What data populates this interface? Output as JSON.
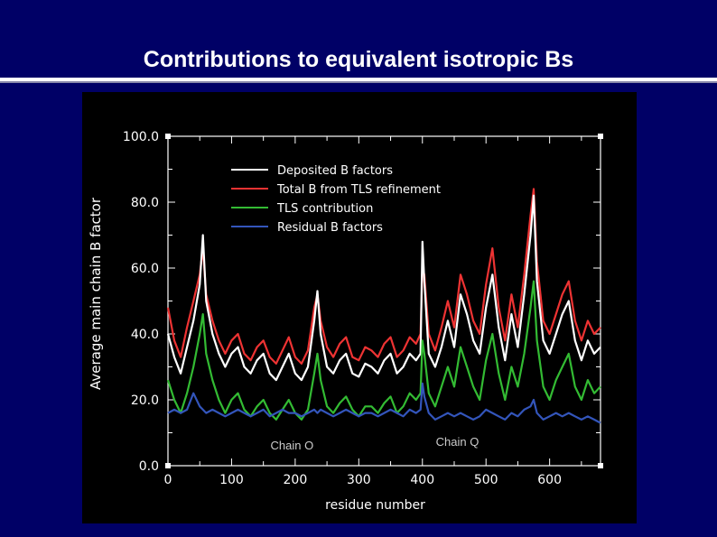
{
  "slide": {
    "title": "Contributions to equivalent isotropic Bs",
    "background_color": "#000066"
  },
  "chart_data": {
    "type": "line",
    "xlabel": "residue number",
    "ylabel": "Average main chain B factor",
    "xlim": [
      0,
      680
    ],
    "ylim": [
      0,
      100
    ],
    "x_ticks": [
      0,
      100,
      200,
      300,
      400,
      500,
      600
    ],
    "x_tick_labels": [
      "0",
      "100",
      "200",
      "300",
      "400",
      "500",
      "600"
    ],
    "y_ticks": [
      0,
      20,
      40,
      60,
      80,
      100
    ],
    "y_tick_labels": [
      "0.0",
      "20.0",
      "40.0",
      "60.0",
      "80.0",
      "100.0"
    ],
    "grid": false,
    "legend_position": "top-center",
    "annotations": [
      {
        "text": "Chain O",
        "x": 195,
        "y": 5
      },
      {
        "text": "Chain Q",
        "x": 455,
        "y": 6
      }
    ],
    "x": [
      0,
      10,
      20,
      30,
      40,
      50,
      55,
      60,
      70,
      80,
      90,
      100,
      110,
      120,
      130,
      140,
      150,
      160,
      170,
      180,
      190,
      200,
      210,
      220,
      230,
      235,
      240,
      250,
      260,
      270,
      280,
      290,
      300,
      310,
      320,
      330,
      340,
      350,
      360,
      370,
      380,
      390,
      397,
      400,
      403,
      410,
      420,
      430,
      440,
      450,
      460,
      470,
      480,
      490,
      500,
      510,
      520,
      530,
      540,
      550,
      560,
      570,
      575,
      580,
      590,
      600,
      610,
      620,
      630,
      640,
      650,
      660,
      670,
      680
    ],
    "series": [
      {
        "name": "Deposited B factors",
        "color": "#ffffff",
        "values": [
          40,
          33,
          28,
          36,
          44,
          55,
          70,
          50,
          40,
          34,
          30,
          34,
          36,
          30,
          28,
          32,
          34,
          28,
          26,
          30,
          34,
          28,
          26,
          30,
          44,
          53,
          40,
          30,
          28,
          32,
          34,
          28,
          27,
          31,
          30,
          28,
          32,
          34,
          28,
          30,
          34,
          32,
          34,
          68,
          56,
          34,
          30,
          36,
          44,
          36,
          52,
          46,
          38,
          34,
          48,
          58,
          42,
          32,
          46,
          36,
          52,
          70,
          82,
          56,
          38,
          34,
          40,
          46,
          50,
          38,
          32,
          38,
          34,
          36
        ]
      },
      {
        "name": "Total B from TLS refinement",
        "color": "#ee3333",
        "values": [
          48,
          38,
          33,
          42,
          50,
          58,
          66,
          52,
          44,
          38,
          34,
          38,
          40,
          34,
          32,
          36,
          38,
          33,
          31,
          35,
          39,
          33,
          31,
          35,
          48,
          52,
          44,
          36,
          33,
          37,
          39,
          33,
          32,
          36,
          35,
          33,
          37,
          39,
          33,
          35,
          39,
          37,
          40,
          60,
          58,
          40,
          35,
          42,
          50,
          42,
          58,
          52,
          44,
          40,
          55,
          66,
          48,
          38,
          52,
          42,
          58,
          76,
          84,
          62,
          44,
          40,
          46,
          52,
          56,
          44,
          38,
          44,
          40,
          42
        ]
      },
      {
        "name": "TLS contribution",
        "color": "#33bb33",
        "values": [
          26,
          20,
          16,
          22,
          30,
          40,
          46,
          34,
          26,
          20,
          16,
          20,
          22,
          17,
          15,
          18,
          20,
          16,
          14,
          17,
          20,
          16,
          14,
          17,
          28,
          34,
          26,
          18,
          16,
          19,
          21,
          17,
          15,
          18,
          18,
          16,
          19,
          21,
          16,
          18,
          22,
          20,
          22,
          38,
          34,
          22,
          18,
          24,
          30,
          24,
          36,
          30,
          24,
          20,
          32,
          40,
          28,
          20,
          30,
          24,
          34,
          48,
          56,
          38,
          24,
          20,
          26,
          30,
          34,
          24,
          20,
          26,
          22,
          24
        ]
      },
      {
        "name": "Residual B factors",
        "color": "#3355bb",
        "values": [
          16,
          17,
          16,
          17,
          22,
          18,
          17,
          16,
          17,
          16,
          15,
          16,
          17,
          16,
          15,
          16,
          17,
          15,
          16,
          17,
          16,
          16,
          15,
          16,
          17,
          16,
          17,
          16,
          15,
          16,
          17,
          16,
          15,
          16,
          16,
          15,
          16,
          17,
          16,
          15,
          17,
          16,
          17,
          25,
          21,
          16,
          14,
          15,
          16,
          15,
          16,
          15,
          14,
          15,
          17,
          16,
          15,
          14,
          16,
          15,
          17,
          18,
          20,
          16,
          14,
          15,
          16,
          15,
          16,
          15,
          14,
          15,
          14,
          13
        ]
      }
    ]
  }
}
